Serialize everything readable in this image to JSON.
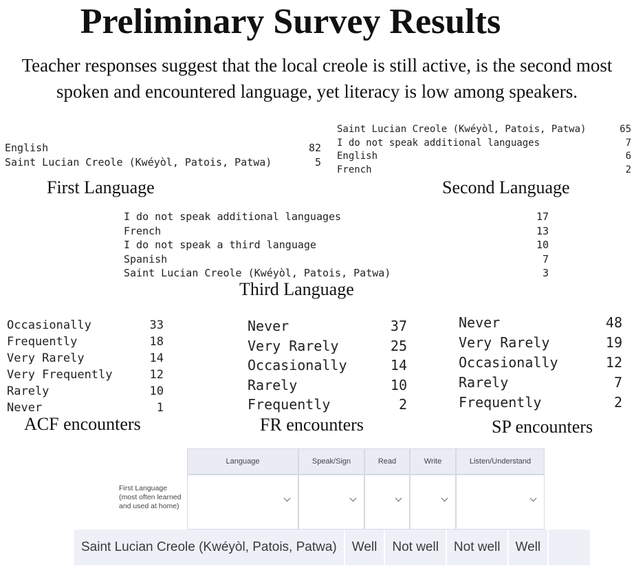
{
  "title": "Preliminary Survey Results",
  "subtitle": [
    "Teacher responses suggest that the local creole is still active, is the second most",
    "spoken and encountered language, yet literacy is low among speakers."
  ],
  "first_language": {
    "label": "First Language",
    "rows": [
      [
        "English",
        82
      ],
      [
        "Saint Lucian Creole (Kwéyòl, Patois, Patwa)",
        5
      ]
    ]
  },
  "second_language": {
    "label": "Second Language",
    "rows": [
      [
        "Saint Lucian Creole (Kwéyòl, Patois, Patwa)",
        65
      ],
      [
        "I do not speak additional languages",
        7
      ],
      [
        "English",
        6
      ],
      [
        "French",
        2
      ]
    ]
  },
  "third_language": {
    "label": "Third Language",
    "rows": [
      [
        "I do not speak additional languages",
        17
      ],
      [
        "French",
        13
      ],
      [
        "I do not speak a third language",
        10
      ],
      [
        "Spanish",
        7
      ],
      [
        "Saint Lucian Creole (Kwéyòl, Patois, Patwa)",
        3
      ]
    ]
  },
  "acf_encounters": {
    "label": "ACF encounters",
    "rows": [
      [
        "Occasionally",
        33
      ],
      [
        "Frequently",
        18
      ],
      [
        "Very Rarely",
        14
      ],
      [
        "Very Frequently",
        12
      ],
      [
        "Rarely",
        10
      ],
      [
        "Never",
        1
      ]
    ]
  },
  "fr_encounters": {
    "label": "FR encounters",
    "rows": [
      [
        "Never",
        37
      ],
      [
        "Very Rarely",
        25
      ],
      [
        "Occasionally",
        14
      ],
      [
        "Rarely",
        10
      ],
      [
        "Frequently",
        2
      ]
    ]
  },
  "sp_encounters": {
    "label": "SP encounters",
    "rows": [
      [
        "Never",
        48
      ],
      [
        "Very Rarely",
        19
      ],
      [
        "Occasionally",
        12
      ],
      [
        "Rarely",
        7
      ],
      [
        "Frequently",
        2
      ]
    ]
  },
  "form": {
    "headers": [
      "Language",
      "Speak/Sign",
      "Read",
      "Write",
      "Listen/Understand"
    ],
    "row_label": "First Language (most often learned and used at home)"
  },
  "answer": [
    "Saint Lucian Creole (Kwéyòl, Patois, Patwa)",
    "Well",
    "Not well",
    "Not well",
    "Well"
  ]
}
